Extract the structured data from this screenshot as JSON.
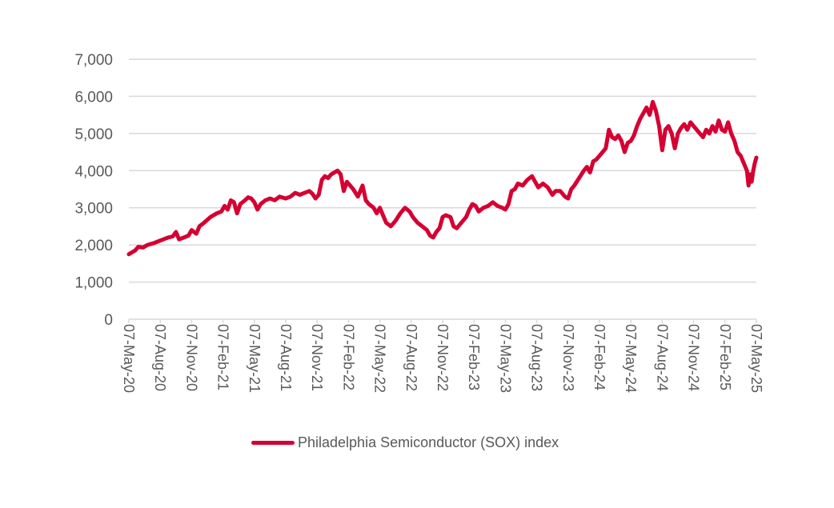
{
  "chart_data": {
    "type": "line",
    "title": "",
    "xlabel": "",
    "ylabel": "",
    "ylim": [
      0,
      7000
    ],
    "yticks": [
      "0",
      "1,000",
      "2,000",
      "3,000",
      "4,000",
      "5,000",
      "6,000",
      "7,000"
    ],
    "ytick_values": [
      0,
      1000,
      2000,
      3000,
      4000,
      5000,
      6000,
      7000
    ],
    "grid": true,
    "legend_position": "bottom",
    "xticks": [
      "07-May-20",
      "07-Aug-20",
      "07-Nov-20",
      "07-Feb-21",
      "07-May-21",
      "07-Aug-21",
      "07-Nov-21",
      "07-Feb-22",
      "07-May-22",
      "07-Aug-22",
      "07-Nov-22",
      "07-Feb-23",
      "07-May-23",
      "07-Aug-23",
      "07-Nov-23",
      "07-Feb-24",
      "07-May-24",
      "07-Aug-24",
      "07-Nov-24",
      "07-Feb-25",
      "07-May-25"
    ],
    "x_unit": "quarters since 07-May-20",
    "series": [
      {
        "name": "Philadelphia Semiconductor (SOX) index",
        "color": "#d50032",
        "points": [
          [
            0.0,
            1750
          ],
          [
            0.1,
            1800
          ],
          [
            0.2,
            1850
          ],
          [
            0.3,
            1950
          ],
          [
            0.45,
            1930
          ],
          [
            0.6,
            2000
          ],
          [
            0.8,
            2050
          ],
          [
            0.95,
            2100
          ],
          [
            1.1,
            2150
          ],
          [
            1.25,
            2200
          ],
          [
            1.4,
            2230
          ],
          [
            1.5,
            2350
          ],
          [
            1.6,
            2150
          ],
          [
            1.75,
            2200
          ],
          [
            1.9,
            2250
          ],
          [
            2.0,
            2400
          ],
          [
            2.15,
            2300
          ],
          [
            2.25,
            2500
          ],
          [
            2.4,
            2600
          ],
          [
            2.6,
            2750
          ],
          [
            2.8,
            2850
          ],
          [
            2.95,
            2900
          ],
          [
            3.05,
            3050
          ],
          [
            3.15,
            2950
          ],
          [
            3.25,
            3200
          ],
          [
            3.35,
            3150
          ],
          [
            3.45,
            2850
          ],
          [
            3.55,
            3100
          ],
          [
            3.7,
            3200
          ],
          [
            3.8,
            3280
          ],
          [
            3.9,
            3250
          ],
          [
            4.0,
            3150
          ],
          [
            4.1,
            2950
          ],
          [
            4.2,
            3100
          ],
          [
            4.35,
            3200
          ],
          [
            4.5,
            3250
          ],
          [
            4.65,
            3200
          ],
          [
            4.8,
            3300
          ],
          [
            5.0,
            3250
          ],
          [
            5.15,
            3300
          ],
          [
            5.3,
            3400
          ],
          [
            5.45,
            3350
          ],
          [
            5.6,
            3400
          ],
          [
            5.75,
            3450
          ],
          [
            5.85,
            3380
          ],
          [
            5.95,
            3250
          ],
          [
            6.05,
            3350
          ],
          [
            6.15,
            3750
          ],
          [
            6.25,
            3850
          ],
          [
            6.35,
            3800
          ],
          [
            6.45,
            3900
          ],
          [
            6.55,
            3950
          ],
          [
            6.65,
            4000
          ],
          [
            6.75,
            3900
          ],
          [
            6.85,
            3450
          ],
          [
            6.95,
            3700
          ],
          [
            7.05,
            3600
          ],
          [
            7.15,
            3500
          ],
          [
            7.3,
            3300
          ],
          [
            7.45,
            3600
          ],
          [
            7.55,
            3200
          ],
          [
            7.65,
            3100
          ],
          [
            7.8,
            3000
          ],
          [
            7.9,
            2850
          ],
          [
            8.0,
            3000
          ],
          [
            8.1,
            2800
          ],
          [
            8.2,
            2600
          ],
          [
            8.35,
            2500
          ],
          [
            8.5,
            2650
          ],
          [
            8.65,
            2850
          ],
          [
            8.8,
            3000
          ],
          [
            8.95,
            2900
          ],
          [
            9.05,
            2750
          ],
          [
            9.2,
            2600
          ],
          [
            9.35,
            2500
          ],
          [
            9.5,
            2400
          ],
          [
            9.6,
            2250
          ],
          [
            9.7,
            2200
          ],
          [
            9.8,
            2350
          ],
          [
            9.9,
            2450
          ],
          [
            10.0,
            2750
          ],
          [
            10.1,
            2800
          ],
          [
            10.25,
            2750
          ],
          [
            10.35,
            2500
          ],
          [
            10.45,
            2450
          ],
          [
            10.6,
            2600
          ],
          [
            10.75,
            2750
          ],
          [
            10.85,
            2950
          ],
          [
            10.95,
            3100
          ],
          [
            11.05,
            3050
          ],
          [
            11.15,
            2900
          ],
          [
            11.3,
            3000
          ],
          [
            11.45,
            3050
          ],
          [
            11.6,
            3150
          ],
          [
            11.75,
            3050
          ],
          [
            11.9,
            3000
          ],
          [
            12.0,
            2950
          ],
          [
            12.1,
            3100
          ],
          [
            12.2,
            3450
          ],
          [
            12.3,
            3500
          ],
          [
            12.4,
            3650
          ],
          [
            12.55,
            3600
          ],
          [
            12.7,
            3750
          ],
          [
            12.85,
            3850
          ],
          [
            12.95,
            3700
          ],
          [
            13.05,
            3550
          ],
          [
            13.2,
            3650
          ],
          [
            13.35,
            3550
          ],
          [
            13.5,
            3350
          ],
          [
            13.6,
            3450
          ],
          [
            13.75,
            3450
          ],
          [
            13.9,
            3300
          ],
          [
            14.0,
            3250
          ],
          [
            14.1,
            3500
          ],
          [
            14.2,
            3600
          ],
          [
            14.35,
            3800
          ],
          [
            14.5,
            4000
          ],
          [
            14.6,
            4100
          ],
          [
            14.7,
            3950
          ],
          [
            14.8,
            4250
          ],
          [
            14.9,
            4300
          ],
          [
            15.0,
            4400
          ],
          [
            15.1,
            4500
          ],
          [
            15.2,
            4600
          ],
          [
            15.3,
            5100
          ],
          [
            15.4,
            4900
          ],
          [
            15.5,
            4850
          ],
          [
            15.6,
            4950
          ],
          [
            15.7,
            4800
          ],
          [
            15.8,
            4500
          ],
          [
            15.9,
            4750
          ],
          [
            16.0,
            4800
          ],
          [
            16.1,
            4950
          ],
          [
            16.2,
            5200
          ],
          [
            16.3,
            5400
          ],
          [
            16.4,
            5550
          ],
          [
            16.5,
            5700
          ],
          [
            16.6,
            5500
          ],
          [
            16.7,
            5850
          ],
          [
            16.8,
            5600
          ],
          [
            16.9,
            5200
          ],
          [
            17.0,
            4550
          ],
          [
            17.1,
            5100
          ],
          [
            17.2,
            5200
          ],
          [
            17.3,
            5000
          ],
          [
            17.4,
            4600
          ],
          [
            17.5,
            5000
          ],
          [
            17.6,
            5150
          ],
          [
            17.7,
            5250
          ],
          [
            17.8,
            5100
          ],
          [
            17.9,
            5300
          ],
          [
            18.0,
            5200
          ],
          [
            18.1,
            5100
          ],
          [
            18.2,
            5000
          ],
          [
            18.3,
            4900
          ],
          [
            18.4,
            5100
          ],
          [
            18.5,
            5000
          ],
          [
            18.6,
            5200
          ],
          [
            18.7,
            5050
          ],
          [
            18.8,
            5350
          ],
          [
            18.9,
            5100
          ],
          [
            19.0,
            5050
          ],
          [
            19.1,
            5300
          ],
          [
            19.2,
            5000
          ],
          [
            19.3,
            4800
          ],
          [
            19.4,
            4500
          ],
          [
            19.5,
            4400
          ],
          [
            19.6,
            4200
          ],
          [
            19.7,
            4000
          ],
          [
            19.75,
            3600
          ],
          [
            19.8,
            3900
          ],
          [
            19.85,
            3700
          ],
          [
            19.9,
            4000
          ],
          [
            19.95,
            4200
          ],
          [
            20.0,
            4350
          ]
        ]
      }
    ]
  }
}
